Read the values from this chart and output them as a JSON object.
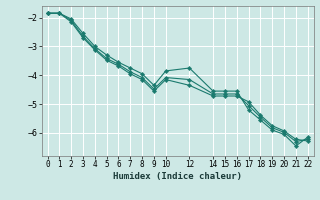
{
  "xlabel": "Humidex (Indice chaleur)",
  "xlim": [
    -0.5,
    22.5
  ],
  "ylim": [
    -6.8,
    -1.6
  ],
  "yticks": [
    -2,
    -3,
    -4,
    -5,
    -6
  ],
  "xticks": [
    0,
    1,
    2,
    3,
    4,
    5,
    6,
    7,
    8,
    9,
    10,
    12,
    14,
    15,
    16,
    17,
    18,
    19,
    20,
    21,
    22
  ],
  "background_color": "#cde8e5",
  "grid_color": "#ffffff",
  "line_color": "#1a7a6e",
  "line1_x": [
    0,
    1,
    2,
    3,
    4,
    5,
    6,
    7,
    8,
    9,
    10,
    12,
    14,
    15,
    16,
    17,
    18,
    19,
    20,
    21,
    22
  ],
  "line1_y": [
    -1.85,
    -1.85,
    -2.05,
    -2.55,
    -3.0,
    -3.3,
    -3.55,
    -3.75,
    -3.95,
    -4.35,
    -3.85,
    -3.75,
    -4.55,
    -4.55,
    -4.55,
    -5.2,
    -5.55,
    -5.9,
    -6.05,
    -6.45,
    -6.15
  ],
  "line2_x": [
    0,
    1,
    2,
    3,
    4,
    5,
    6,
    7,
    8,
    9,
    10,
    12,
    14,
    15,
    16,
    17,
    18,
    19,
    20,
    21,
    22
  ],
  "line2_y": [
    -1.85,
    -1.85,
    -2.1,
    -2.65,
    -3.08,
    -3.42,
    -3.62,
    -3.88,
    -4.08,
    -4.48,
    -4.08,
    -4.15,
    -4.65,
    -4.65,
    -4.65,
    -5.05,
    -5.45,
    -5.82,
    -5.98,
    -6.3,
    -6.22
  ],
  "line3_x": [
    0,
    1,
    2,
    3,
    4,
    5,
    6,
    7,
    8,
    9,
    10,
    12,
    14,
    15,
    16,
    17,
    18,
    19,
    20,
    21,
    22
  ],
  "line3_y": [
    -1.85,
    -1.85,
    -2.15,
    -2.7,
    -3.12,
    -3.48,
    -3.68,
    -3.95,
    -4.15,
    -4.55,
    -4.15,
    -4.35,
    -4.72,
    -4.72,
    -4.72,
    -4.92,
    -5.38,
    -5.75,
    -5.93,
    -6.22,
    -6.28
  ]
}
